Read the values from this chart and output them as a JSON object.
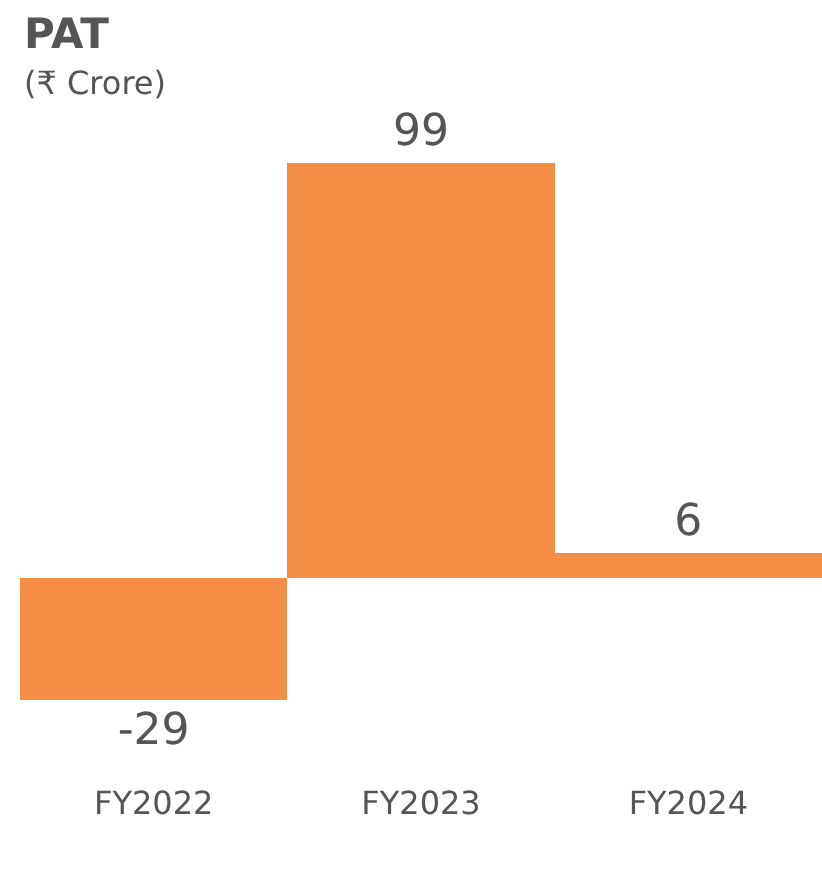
{
  "chart_data": {
    "type": "bar",
    "title": "PAT",
    "subtitle": "(₹ Crore)",
    "categories": [
      "FY2022",
      "FY2023",
      "FY2024"
    ],
    "values": [
      -29,
      99,
      6
    ],
    "color": "#f58d45",
    "data_labels": true
  }
}
